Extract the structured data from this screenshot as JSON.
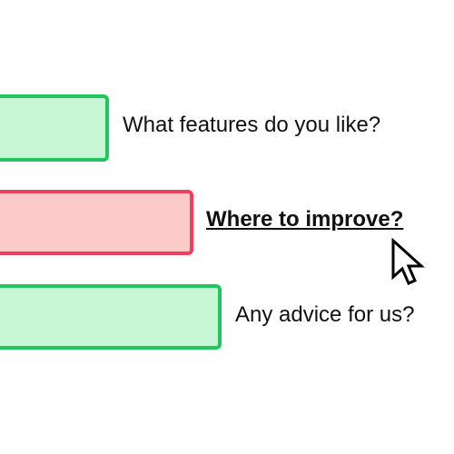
{
  "options": [
    {
      "label": "What features do you like?",
      "state": "normal",
      "color": "#22c55e"
    },
    {
      "label": "Where to improve?",
      "state": "hovered",
      "color": "#ee3f5e"
    },
    {
      "label": "Any advice for us?",
      "state": "normal",
      "color": "#22c55e"
    }
  ],
  "cursor": {
    "icon": "arrow-pointer-icon"
  }
}
